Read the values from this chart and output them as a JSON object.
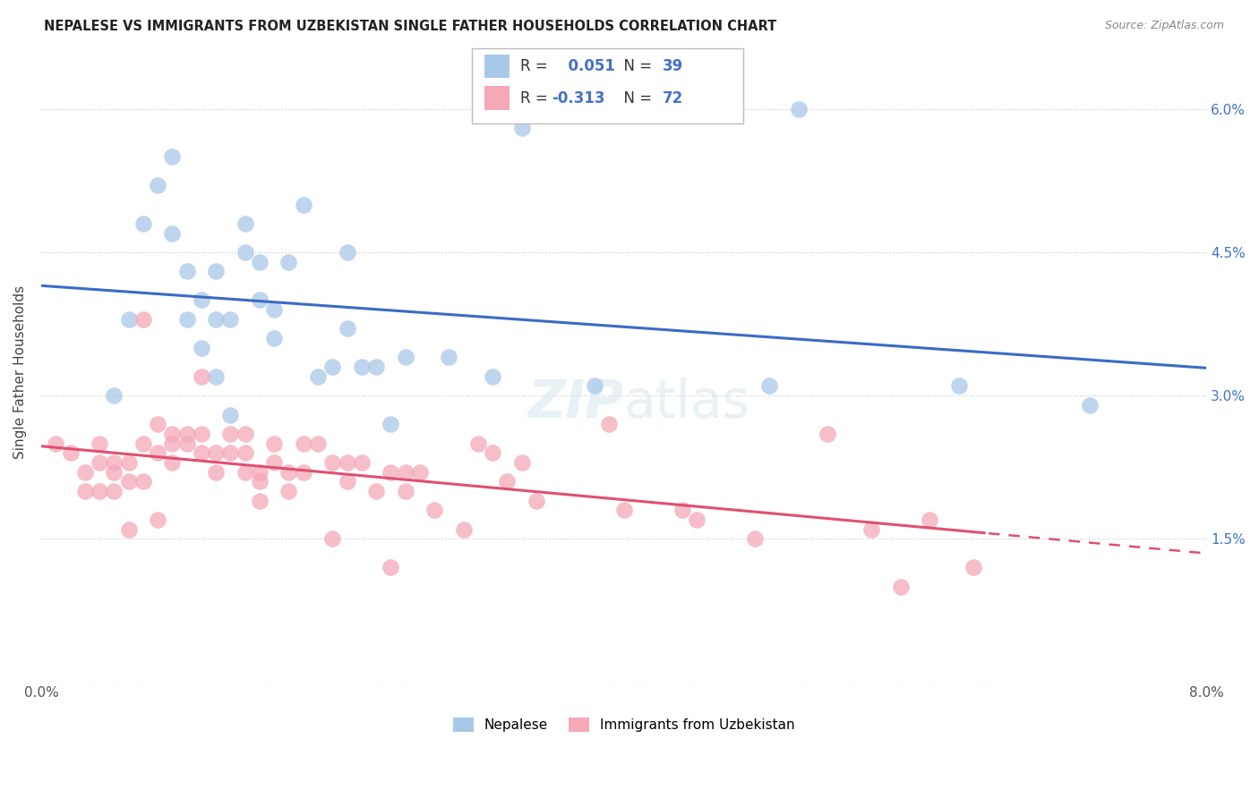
{
  "title": "NEPALESE VS IMMIGRANTS FROM UZBEKISTAN SINGLE FATHER HOUSEHOLDS CORRELATION CHART",
  "source": "Source: ZipAtlas.com",
  "ylabel": "Single Father Households",
  "x_min": 0.0,
  "x_max": 0.08,
  "y_min": 0.0,
  "y_max": 0.065,
  "y_ticks": [
    0.0,
    0.015,
    0.03,
    0.045,
    0.06
  ],
  "y_tick_labels_right": [
    "",
    "1.5%",
    "3.0%",
    "4.5%",
    "6.0%"
  ],
  "legend_label1": "Nepalese",
  "legend_label2": "Immigrants from Uzbekistan",
  "R1": 0.051,
  "N1": 39,
  "R2": -0.313,
  "N2": 72,
  "color_blue": "#A8C8E8",
  "color_pink": "#F4A8B8",
  "line_color_blue": "#3B6BC4",
  "line_color_pink": "#E05070",
  "background_color": "#FFFFFF",
  "grid_color": "#CCCCCC",
  "nepalese_x": [
    0.005,
    0.006,
    0.007,
    0.008,
    0.009,
    0.009,
    0.01,
    0.01,
    0.011,
    0.011,
    0.012,
    0.012,
    0.012,
    0.013,
    0.013,
    0.014,
    0.014,
    0.015,
    0.015,
    0.016,
    0.016,
    0.017,
    0.018,
    0.019,
    0.02,
    0.021,
    0.021,
    0.022,
    0.023,
    0.024,
    0.025,
    0.028,
    0.031,
    0.033,
    0.038,
    0.05,
    0.052,
    0.063,
    0.072
  ],
  "nepalese_y": [
    0.03,
    0.038,
    0.048,
    0.052,
    0.047,
    0.055,
    0.043,
    0.038,
    0.04,
    0.035,
    0.032,
    0.038,
    0.043,
    0.028,
    0.038,
    0.045,
    0.048,
    0.04,
    0.044,
    0.039,
    0.036,
    0.044,
    0.05,
    0.032,
    0.033,
    0.037,
    0.045,
    0.033,
    0.033,
    0.027,
    0.034,
    0.034,
    0.032,
    0.058,
    0.031,
    0.031,
    0.06,
    0.031,
    0.029
  ],
  "uzbek_x": [
    0.001,
    0.002,
    0.003,
    0.003,
    0.004,
    0.004,
    0.004,
    0.005,
    0.005,
    0.005,
    0.006,
    0.006,
    0.006,
    0.007,
    0.007,
    0.007,
    0.008,
    0.008,
    0.008,
    0.009,
    0.009,
    0.009,
    0.01,
    0.01,
    0.011,
    0.011,
    0.011,
    0.012,
    0.012,
    0.013,
    0.013,
    0.014,
    0.014,
    0.014,
    0.015,
    0.015,
    0.015,
    0.016,
    0.016,
    0.017,
    0.017,
    0.018,
    0.018,
    0.019,
    0.02,
    0.02,
    0.021,
    0.021,
    0.022,
    0.023,
    0.024,
    0.024,
    0.025,
    0.025,
    0.026,
    0.027,
    0.029,
    0.03,
    0.031,
    0.032,
    0.033,
    0.034,
    0.039,
    0.04,
    0.044,
    0.045,
    0.049,
    0.054,
    0.057,
    0.059,
    0.061,
    0.064
  ],
  "uzbek_y": [
    0.025,
    0.024,
    0.022,
    0.02,
    0.025,
    0.023,
    0.02,
    0.023,
    0.022,
    0.02,
    0.023,
    0.021,
    0.016,
    0.038,
    0.025,
    0.021,
    0.027,
    0.024,
    0.017,
    0.025,
    0.026,
    0.023,
    0.025,
    0.026,
    0.032,
    0.026,
    0.024,
    0.024,
    0.022,
    0.026,
    0.024,
    0.026,
    0.024,
    0.022,
    0.022,
    0.021,
    0.019,
    0.025,
    0.023,
    0.022,
    0.02,
    0.025,
    0.022,
    0.025,
    0.015,
    0.023,
    0.023,
    0.021,
    0.023,
    0.02,
    0.012,
    0.022,
    0.022,
    0.02,
    0.022,
    0.018,
    0.016,
    0.025,
    0.024,
    0.021,
    0.023,
    0.019,
    0.027,
    0.018,
    0.018,
    0.017,
    0.015,
    0.026,
    0.016,
    0.01,
    0.017,
    0.012
  ]
}
